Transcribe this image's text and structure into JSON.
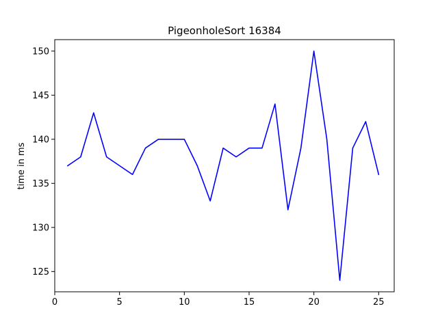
{
  "chart_data": {
    "type": "line",
    "title": "PigeonholeSort 16384",
    "xlabel": "",
    "ylabel": "time in ms",
    "xlim": [
      0,
      26.2
    ],
    "ylim": [
      122.7,
      151.3
    ],
    "x_ticks": [
      0,
      5,
      10,
      15,
      20,
      25
    ],
    "y_ticks": [
      125,
      130,
      135,
      140,
      145,
      150
    ],
    "grid": false,
    "legend": "none",
    "series": [
      {
        "color": "#0000ff",
        "x": [
          1,
          2,
          3,
          4,
          5,
          6,
          7,
          8,
          9,
          10,
          11,
          12,
          13,
          14,
          15,
          16,
          17,
          18,
          19,
          20,
          21,
          22,
          23,
          24,
          25
        ],
        "y": [
          137,
          138,
          143,
          138,
          137,
          136,
          139,
          140,
          140,
          140,
          137,
          133,
          139,
          138,
          139,
          139,
          144,
          132,
          139,
          150,
          140,
          124,
          139,
          142,
          136
        ]
      }
    ]
  }
}
